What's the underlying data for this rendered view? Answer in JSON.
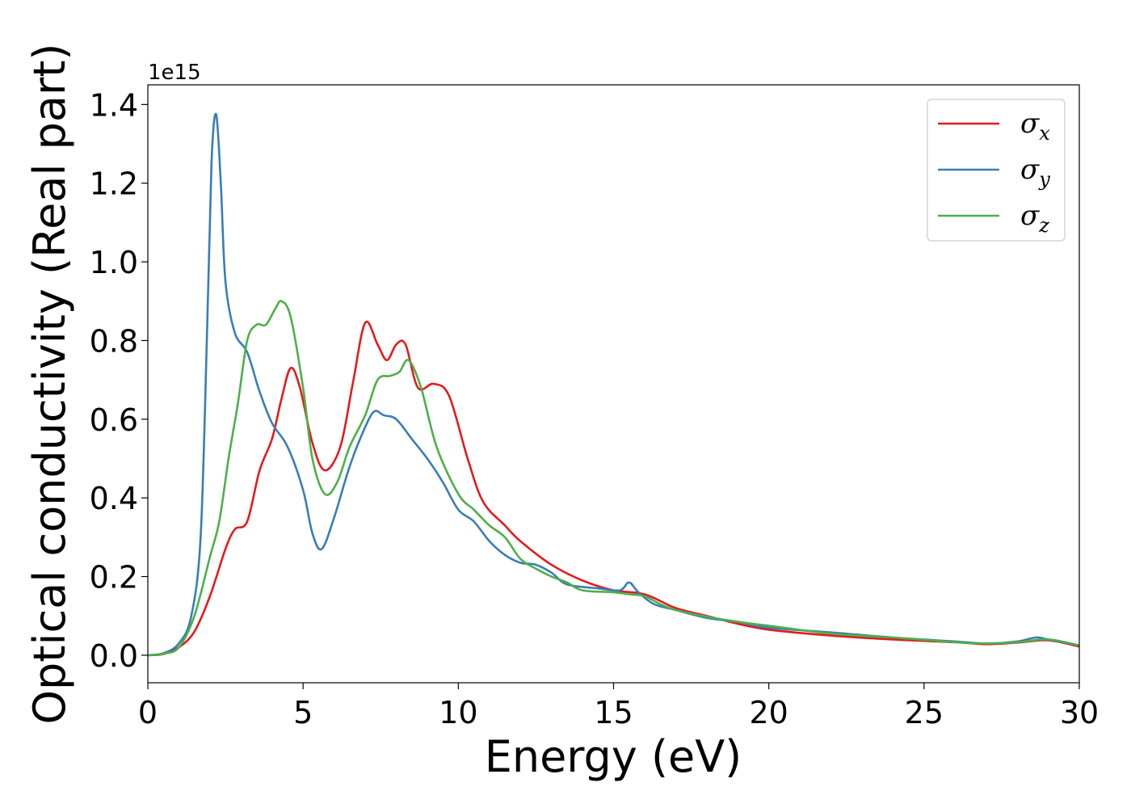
{
  "chart_data": {
    "type": "line",
    "xlabel": "Energy (eV)",
    "ylabel": "Optical conductivity (Real part)",
    "y_offset_label": "1e15",
    "xlim": [
      0,
      30
    ],
    "ylim": [
      -0.07,
      1.45
    ],
    "xticks": [
      "0",
      "5",
      "10",
      "15",
      "20",
      "25",
      "30"
    ],
    "yticks": [
      "0.0",
      "0.2",
      "0.4",
      "0.6",
      "0.8",
      "1.0",
      "1.2",
      "1.4"
    ],
    "grid": false,
    "legend_position": "top-right",
    "series": [
      {
        "name": "σx",
        "symbol": "σ",
        "subscript": "x",
        "color": "#e41a1c",
        "points": [
          [
            0,
            0
          ],
          [
            0.5,
            0.003
          ],
          [
            1,
            0.02
          ],
          [
            1.5,
            0.06
          ],
          [
            2,
            0.15
          ],
          [
            2.5,
            0.27
          ],
          [
            2.8,
            0.32
          ],
          [
            3.2,
            0.34
          ],
          [
            3.6,
            0.47
          ],
          [
            4,
            0.55
          ],
          [
            4.3,
            0.65
          ],
          [
            4.6,
            0.73
          ],
          [
            4.9,
            0.68
          ],
          [
            5.3,
            0.54
          ],
          [
            5.7,
            0.47
          ],
          [
            6.2,
            0.53
          ],
          [
            6.6,
            0.69
          ],
          [
            7,
            0.845
          ],
          [
            7.4,
            0.79
          ],
          [
            7.7,
            0.75
          ],
          [
            8,
            0.79
          ],
          [
            8.3,
            0.79
          ],
          [
            8.7,
            0.68
          ],
          [
            9.2,
            0.69
          ],
          [
            9.7,
            0.66
          ],
          [
            10.3,
            0.5
          ],
          [
            10.8,
            0.39
          ],
          [
            11.5,
            0.33
          ],
          [
            12,
            0.29
          ],
          [
            13,
            0.23
          ],
          [
            14,
            0.19
          ],
          [
            15,
            0.165
          ],
          [
            16,
            0.155
          ],
          [
            17,
            0.12
          ],
          [
            18,
            0.1
          ],
          [
            19,
            0.08
          ],
          [
            20,
            0.065
          ],
          [
            22,
            0.05
          ],
          [
            24,
            0.04
          ],
          [
            26,
            0.033
          ],
          [
            27,
            0.028
          ],
          [
            28,
            0.032
          ],
          [
            29,
            0.038
          ],
          [
            30,
            0.022
          ]
        ]
      },
      {
        "name": "σy",
        "symbol": "σ",
        "subscript": "y",
        "color": "#377eb8",
        "points": [
          [
            0,
            0
          ],
          [
            0.5,
            0.005
          ],
          [
            1,
            0.03
          ],
          [
            1.4,
            0.1
          ],
          [
            1.7,
            0.3
          ],
          [
            1.9,
            0.8
          ],
          [
            2.05,
            1.25
          ],
          [
            2.2,
            1.375
          ],
          [
            2.35,
            1.2
          ],
          [
            2.5,
            0.95
          ],
          [
            2.8,
            0.82
          ],
          [
            3.2,
            0.77
          ],
          [
            3.6,
            0.67
          ],
          [
            4,
            0.59
          ],
          [
            4.5,
            0.53
          ],
          [
            5,
            0.42
          ],
          [
            5.3,
            0.31
          ],
          [
            5.6,
            0.27
          ],
          [
            6,
            0.35
          ],
          [
            6.5,
            0.48
          ],
          [
            7,
            0.58
          ],
          [
            7.3,
            0.62
          ],
          [
            7.6,
            0.61
          ],
          [
            8,
            0.6
          ],
          [
            8.5,
            0.55
          ],
          [
            9,
            0.5
          ],
          [
            9.5,
            0.44
          ],
          [
            10,
            0.37
          ],
          [
            10.5,
            0.34
          ],
          [
            11,
            0.29
          ],
          [
            11.5,
            0.255
          ],
          [
            12,
            0.235
          ],
          [
            12.5,
            0.23
          ],
          [
            13,
            0.21
          ],
          [
            13.5,
            0.18
          ],
          [
            14.5,
            0.17
          ],
          [
            15.2,
            0.165
          ],
          [
            15.5,
            0.185
          ],
          [
            15.8,
            0.16
          ],
          [
            16.3,
            0.13
          ],
          [
            17,
            0.115
          ],
          [
            18,
            0.095
          ],
          [
            19,
            0.085
          ],
          [
            20,
            0.07
          ],
          [
            22,
            0.058
          ],
          [
            24,
            0.045
          ],
          [
            26,
            0.035
          ],
          [
            27,
            0.03
          ],
          [
            28,
            0.035
          ],
          [
            28.6,
            0.045
          ],
          [
            29,
            0.04
          ],
          [
            30,
            0.025
          ]
        ]
      },
      {
        "name": "σz",
        "symbol": "σ",
        "subscript": "z",
        "color": "#4daf4a",
        "points": [
          [
            0,
            0
          ],
          [
            0.5,
            0.004
          ],
          [
            1,
            0.02
          ],
          [
            1.5,
            0.1
          ],
          [
            2,
            0.25
          ],
          [
            2.3,
            0.34
          ],
          [
            2.6,
            0.5
          ],
          [
            2.9,
            0.64
          ],
          [
            3.2,
            0.8
          ],
          [
            3.5,
            0.84
          ],
          [
            3.8,
            0.84
          ],
          [
            4.1,
            0.88
          ],
          [
            4.3,
            0.9
          ],
          [
            4.6,
            0.86
          ],
          [
            5,
            0.68
          ],
          [
            5.3,
            0.5
          ],
          [
            5.7,
            0.41
          ],
          [
            6.1,
            0.44
          ],
          [
            6.5,
            0.53
          ],
          [
            7,
            0.61
          ],
          [
            7.4,
            0.7
          ],
          [
            7.8,
            0.71
          ],
          [
            8.1,
            0.72
          ],
          [
            8.4,
            0.75
          ],
          [
            8.8,
            0.68
          ],
          [
            9.3,
            0.53
          ],
          [
            10,
            0.41
          ],
          [
            10.5,
            0.37
          ],
          [
            11,
            0.33
          ],
          [
            11.5,
            0.3
          ],
          [
            12,
            0.245
          ],
          [
            12.5,
            0.22
          ],
          [
            13,
            0.2
          ],
          [
            13.5,
            0.185
          ],
          [
            14,
            0.165
          ],
          [
            15,
            0.16
          ],
          [
            15.5,
            0.155
          ],
          [
            16,
            0.15
          ],
          [
            16.5,
            0.13
          ],
          [
            17,
            0.115
          ],
          [
            18,
            0.098
          ],
          [
            19,
            0.085
          ],
          [
            20,
            0.075
          ],
          [
            22,
            0.055
          ],
          [
            24,
            0.045
          ],
          [
            26,
            0.033
          ],
          [
            27,
            0.03
          ],
          [
            28,
            0.033
          ],
          [
            29,
            0.04
          ],
          [
            30,
            0.025
          ]
        ]
      }
    ]
  }
}
